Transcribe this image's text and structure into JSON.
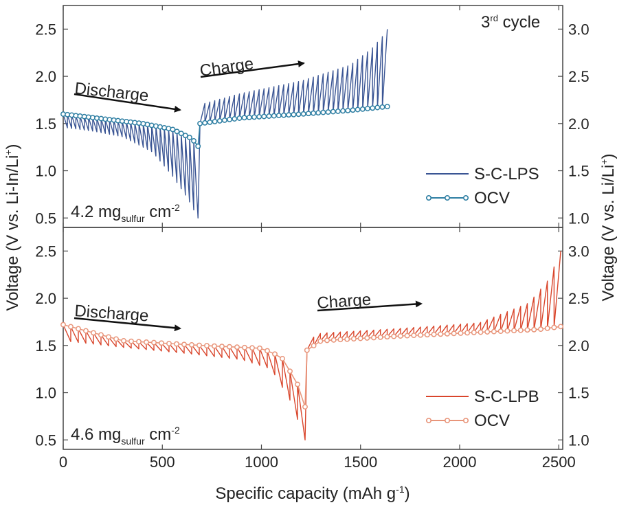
{
  "chart_data": [
    {
      "type": "line",
      "panel": "top",
      "xlim": [
        0,
        2520
      ],
      "ylim_left": [
        0.4,
        2.75
      ],
      "ylim_right": [
        0.9,
        3.25
      ],
      "x_ticks": [
        0,
        500,
        1000,
        1500,
        2000,
        2500
      ],
      "y_ticks_left": [
        "0.5",
        "1.0",
        "1.5",
        "2.0",
        "2.5"
      ],
      "y_ticks_right": [
        "1.0",
        "1.5",
        "2.0",
        "2.5",
        "3.0"
      ],
      "cycle_label": "3",
      "cycle_label_sup": "rd",
      "cycle_label_rest": " cycle",
      "loading_main": "4.2 mg",
      "loading_sub": "sulfur",
      "loading_unit": " cm",
      "loading_sup": "-2",
      "discharge_label": "Discharge",
      "charge_label": "Charge",
      "legend_placement": "lower-right",
      "series": [
        {
          "name": "S-C-LPS",
          "color": "#3a5594",
          "style": "line",
          "discharge_end": 680,
          "charge_end": 1635,
          "discharge_pulse_lows": [
            [
              0,
              1.46
            ],
            [
              150,
              1.42
            ],
            [
              300,
              1.36
            ],
            [
              450,
              1.2
            ],
            [
              550,
              0.95
            ],
            [
              630,
              0.7
            ],
            [
              680,
              0.5
            ]
          ],
          "charge_pulse_highs": [
            [
              690,
              1.7
            ],
            [
              900,
              1.82
            ],
            [
              1200,
              1.95
            ],
            [
              1450,
              2.12
            ],
            [
              1560,
              2.3
            ],
            [
              1610,
              2.42
            ],
            [
              1635,
              2.5
            ]
          ]
        },
        {
          "name": "OCV",
          "color": "#2f7fa3",
          "style": "line-circle",
          "discharge": [
            [
              0,
              1.6
            ],
            [
              200,
              1.55
            ],
            [
              400,
              1.5
            ],
            [
              550,
              1.44
            ],
            [
              650,
              1.34
            ],
            [
              680,
              1.26
            ]
          ],
          "charge": [
            [
              690,
              1.5
            ],
            [
              900,
              1.56
            ],
            [
              1200,
              1.6
            ],
            [
              1450,
              1.64
            ],
            [
              1635,
              1.68
            ]
          ]
        }
      ]
    },
    {
      "type": "line",
      "panel": "bottom",
      "xlim": [
        0,
        2520
      ],
      "ylim_left": [
        0.4,
        2.75
      ],
      "ylim_right": [
        0.9,
        3.25
      ],
      "x_ticks": [
        0,
        500,
        1000,
        1500,
        2000,
        2500
      ],
      "y_ticks_left": [
        "0.5",
        "1.0",
        "1.5",
        "2.0",
        "2.5"
      ],
      "y_ticks_right": [
        "1.0",
        "1.5",
        "2.0",
        "2.5",
        "3.0"
      ],
      "loading_main": "4.6 mg",
      "loading_sub": "sulfur",
      "loading_unit": " cm",
      "loading_sup": "-2",
      "discharge_label": "Discharge",
      "charge_label": "Charge",
      "legend_placement": "lower-right",
      "series": [
        {
          "name": "S-C-LPB",
          "color": "#d9452b",
          "style": "line",
          "discharge_end": 1220,
          "charge_end": 2510,
          "discharge_pulse_lows": [
            [
              0,
              1.55
            ],
            [
              300,
              1.48
            ],
            [
              600,
              1.42
            ],
            [
              900,
              1.35
            ],
            [
              1050,
              1.25
            ],
            [
              1150,
              0.9
            ],
            [
              1220,
              0.5
            ]
          ],
          "charge_pulse_highs": [
            [
              1230,
              1.55
            ],
            [
              1300,
              1.63
            ],
            [
              1700,
              1.68
            ],
            [
              2100,
              1.74
            ],
            [
              2350,
              1.95
            ],
            [
              2450,
              2.2
            ],
            [
              2510,
              2.5
            ]
          ]
        },
        {
          "name": "OCV",
          "color": "#e8957a",
          "style": "line-circle",
          "discharge": [
            [
              0,
              1.72
            ],
            [
              300,
              1.55
            ],
            [
              700,
              1.5
            ],
            [
              1000,
              1.47
            ],
            [
              1100,
              1.38
            ],
            [
              1180,
              1.1
            ],
            [
              1220,
              0.85
            ]
          ],
          "charge": [
            [
              1230,
              1.45
            ],
            [
              1300,
              1.55
            ],
            [
              1700,
              1.6
            ],
            [
              2100,
              1.64
            ],
            [
              2400,
              1.67
            ],
            [
              2510,
              1.7
            ]
          ]
        }
      ]
    }
  ],
  "shared": {
    "xlabel": "Specific capacity (mAh g",
    "xlabel_sup": "-1",
    "xlabel_end": ")",
    "ylabel_left": "Voltage (V vs. Li-In/Li",
    "ylabel_left_sup": "+",
    "ylabel_left_end": ")",
    "ylabel_right": "Voltage (V vs. Li/Li",
    "ylabel_right_sup": "+",
    "ylabel_right_end": ")"
  }
}
